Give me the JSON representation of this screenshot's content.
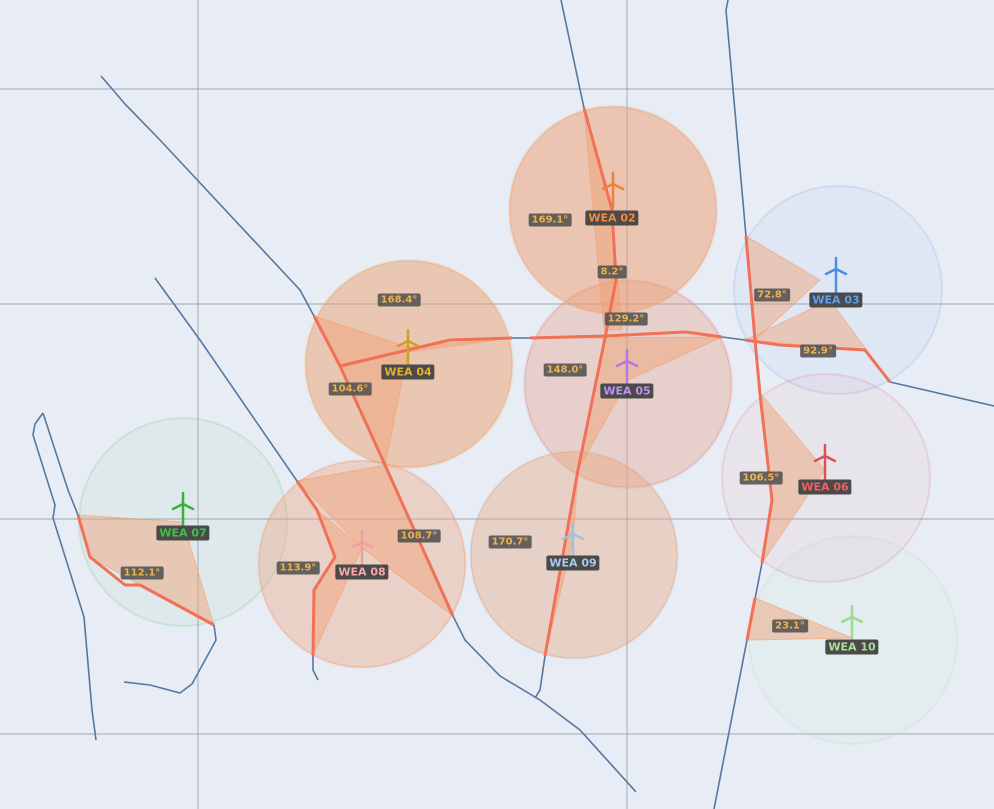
{
  "turbines": [
    {
      "label": "WEA 02"
    },
    {
      "label": "WEA 03"
    },
    {
      "label": "WEA 04"
    },
    {
      "label": "WEA 05"
    },
    {
      "label": "WEA 06"
    },
    {
      "label": "WEA 07"
    },
    {
      "label": "WEA 08"
    },
    {
      "label": "WEA 09"
    },
    {
      "label": "WEA 10"
    }
  ],
  "angles": [
    "169.1°",
    "8.2°",
    "168.4°",
    "129.2°",
    "72.8°",
    "148.0°",
    "104.6°",
    "92.9°",
    "106.5°",
    "108.7°",
    "170.7°",
    "113.9°",
    "112.1°",
    "23.1°"
  ]
}
